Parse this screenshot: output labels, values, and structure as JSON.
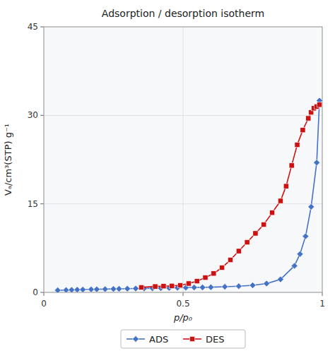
{
  "chart_data": {
    "type": "line",
    "title": "Adsorption / desorption isotherm",
    "xlabel": "p/p₀",
    "ylabel": "Vₐ/cm³(STP) g⁻¹",
    "xlim": [
      0,
      1.0
    ],
    "ylim": [
      0,
      45
    ],
    "xticks": [
      0,
      0.5,
      1
    ],
    "yticks": [
      0,
      15,
      30,
      45
    ],
    "grid": true,
    "legend": "bottom",
    "series": [
      {
        "name": "ADS",
        "color": "#4472c4",
        "marker": "diamond",
        "x": [
          0.05,
          0.08,
          0.1,
          0.12,
          0.14,
          0.17,
          0.19,
          0.22,
          0.25,
          0.27,
          0.3,
          0.33,
          0.36,
          0.39,
          0.42,
          0.45,
          0.48,
          0.51,
          0.54,
          0.57,
          0.6,
          0.65,
          0.7,
          0.75,
          0.8,
          0.85,
          0.9,
          0.92,
          0.94,
          0.96,
          0.98,
          0.99
        ],
        "values": [
          0.35,
          0.4,
          0.42,
          0.45,
          0.47,
          0.5,
          0.52,
          0.55,
          0.58,
          0.6,
          0.62,
          0.65,
          0.67,
          0.7,
          0.72,
          0.75,
          0.78,
          0.8,
          0.83,
          0.85,
          0.88,
          0.95,
          1.05,
          1.2,
          1.5,
          2.2,
          4.5,
          6.5,
          9.5,
          14.5,
          22.0,
          32.5
        ]
      },
      {
        "name": "DES",
        "color": "#cc1111",
        "marker": "square",
        "x": [
          0.35,
          0.4,
          0.43,
          0.46,
          0.49,
          0.52,
          0.55,
          0.58,
          0.61,
          0.64,
          0.67,
          0.7,
          0.73,
          0.76,
          0.79,
          0.82,
          0.85,
          0.87,
          0.89,
          0.91,
          0.93,
          0.95,
          0.96,
          0.97,
          0.98,
          0.99
        ],
        "values": [
          0.85,
          1.0,
          1.05,
          1.1,
          1.2,
          1.5,
          1.9,
          2.5,
          3.2,
          4.2,
          5.5,
          7.0,
          8.5,
          10.0,
          11.5,
          13.5,
          15.5,
          18.0,
          21.5,
          25.0,
          27.5,
          29.5,
          30.5,
          31.2,
          31.5,
          31.8
        ]
      }
    ]
  }
}
